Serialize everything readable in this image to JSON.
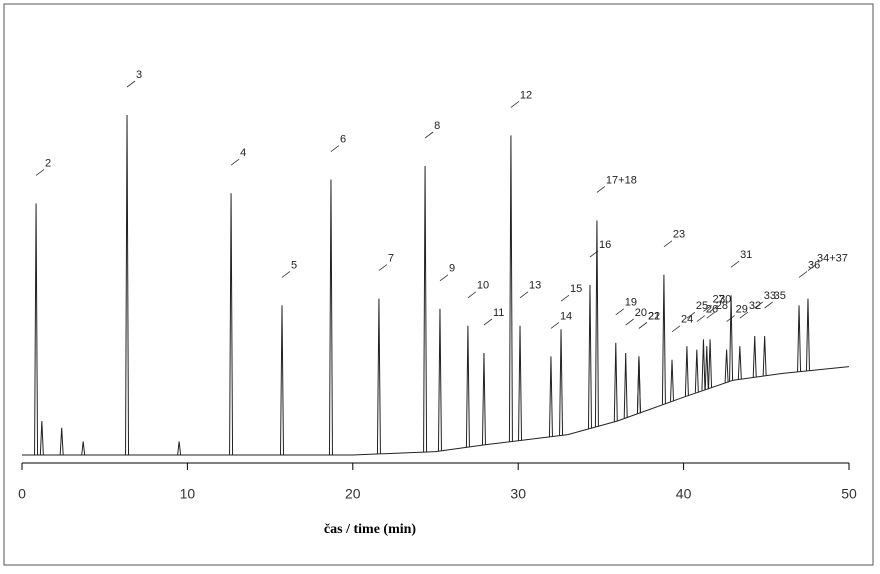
{
  "chart_data": {
    "type": "chromatogram",
    "x_label": "čas / time (min)",
    "xlim": [
      0,
      50
    ],
    "xticks": [
      0,
      10,
      20,
      30,
      40,
      50
    ],
    "ylim": [
      0,
      100
    ],
    "color": "#222222",
    "baseline": {
      "x": [
        0,
        20,
        25,
        28,
        33,
        36,
        40,
        43,
        46,
        48,
        50
      ],
      "values": [
        0,
        0,
        1,
        3,
        6,
        10,
        17,
        22,
        24,
        25,
        26
      ]
    },
    "peaks": {
      "labels": [
        "2",
        null,
        null,
        null,
        "3",
        null,
        "4",
        "5",
        "6",
        "7",
        "8",
        "9",
        "10",
        "11",
        "12",
        "13",
        "14",
        "15",
        "16",
        "17+18",
        "19",
        "20",
        "21",
        "22",
        "23",
        "24",
        "25",
        "26",
        "27",
        "28",
        "30",
        "29",
        "31",
        "32",
        "33",
        "35",
        "36",
        "34+37"
      ],
      "x": [
        0.85,
        1.2,
        2.4,
        3.7,
        6.35,
        9.5,
        12.64,
        15.72,
        18.68,
        21.58,
        24.37,
        25.27,
        26.96,
        27.93,
        29.56,
        30.11,
        31.98,
        32.59,
        34.34,
        34.76,
        35.9,
        36.5,
        37.3,
        37.3,
        38.81,
        39.3,
        40.2,
        40.8,
        41.2,
        41.4,
        41.6,
        42.6,
        42.87,
        43.4,
        44.3,
        44.9,
        46.98,
        47.52
      ],
      "values": [
        74,
        10,
        8,
        4,
        100,
        4,
        77,
        44,
        81,
        46,
        85,
        43,
        38,
        30,
        94,
        38,
        29,
        37,
        50,
        69,
        33,
        30,
        29,
        29,
        53,
        28,
        32,
        31,
        34,
        32,
        34,
        31,
        47,
        32,
        35,
        35,
        44,
        46
      ]
    }
  }
}
